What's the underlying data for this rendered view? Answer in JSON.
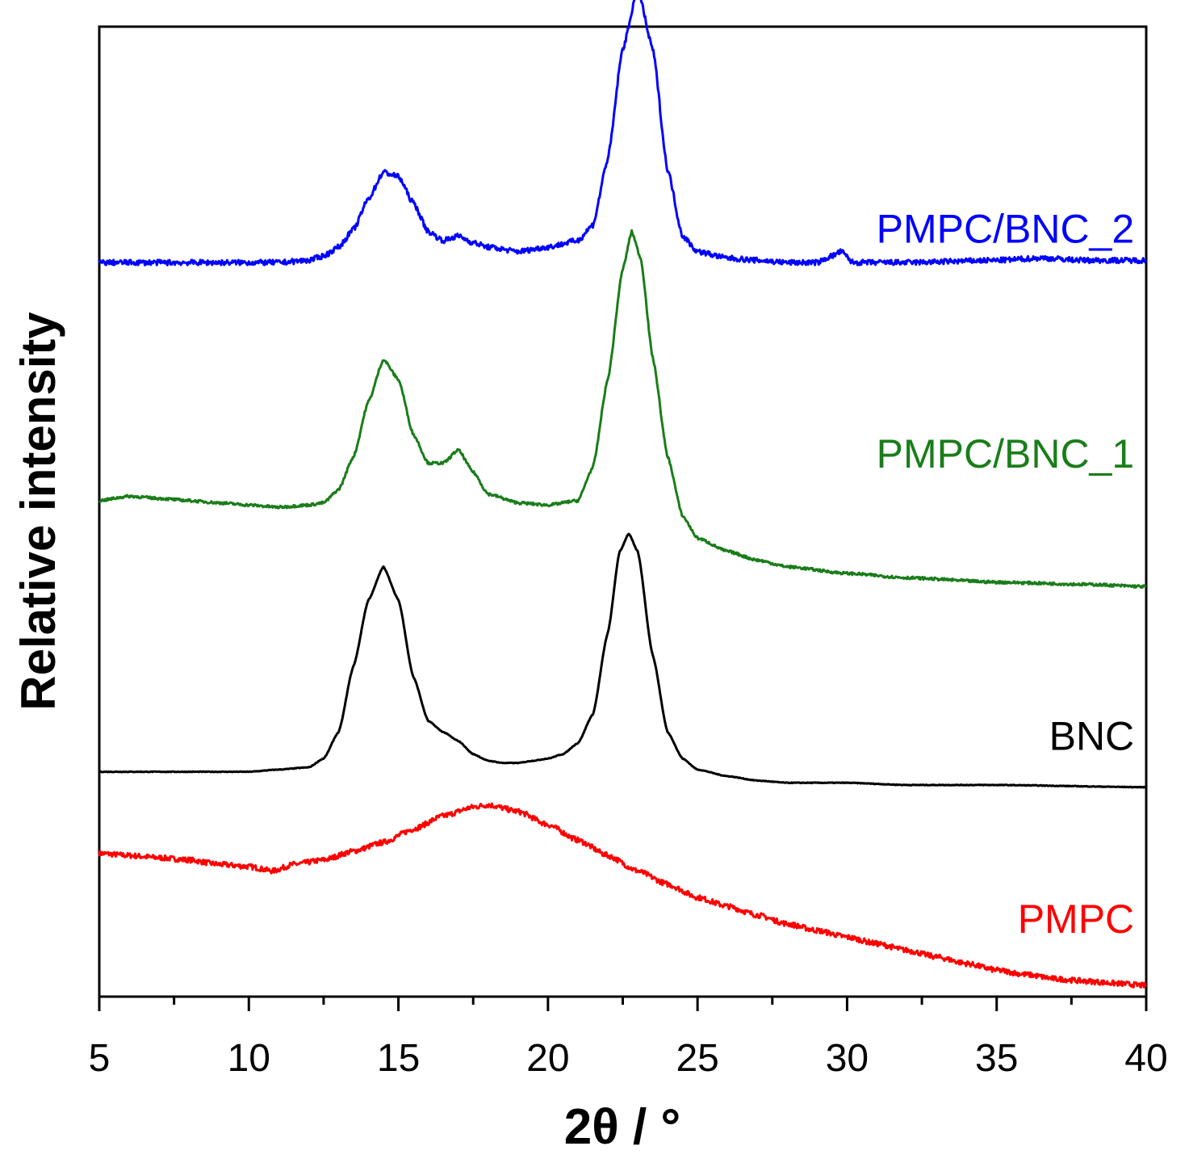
{
  "chart_data": {
    "type": "line",
    "title": "",
    "xlabel": "2θ / °",
    "ylabel": "Relative intensity",
    "xlim": [
      5,
      40
    ],
    "ylim": [
      0,
      4.4
    ],
    "x_ticks": [
      5,
      10,
      15,
      20,
      25,
      30,
      35,
      40
    ],
    "x_tick_labels": [
      "5",
      "10",
      "15",
      "20",
      "25",
      "30",
      "35",
      "40"
    ],
    "y_ticks_shown": false,
    "grid": false,
    "legend": "inline labels at right of each curve",
    "series": [
      {
        "name": "PMPC",
        "color": "#ff0000",
        "label_anchor": [
          39.6,
          0.29
        ],
        "points": [
          [
            5,
            0.65
          ],
          [
            6,
            0.64
          ],
          [
            7,
            0.63
          ],
          [
            8,
            0.62
          ],
          [
            9,
            0.6
          ],
          [
            10,
            0.59
          ],
          [
            10.8,
            0.57
          ],
          [
            11.5,
            0.6
          ],
          [
            12.5,
            0.62
          ],
          [
            13.5,
            0.66
          ],
          [
            14.5,
            0.7
          ],
          [
            15.5,
            0.76
          ],
          [
            16.5,
            0.82
          ],
          [
            17.5,
            0.86
          ],
          [
            18,
            0.87
          ],
          [
            19,
            0.84
          ],
          [
            20,
            0.78
          ],
          [
            21,
            0.71
          ],
          [
            22,
            0.64
          ],
          [
            23,
            0.57
          ],
          [
            24,
            0.51
          ],
          [
            25,
            0.45
          ],
          [
            26,
            0.41
          ],
          [
            27,
            0.37
          ],
          [
            28,
            0.33
          ],
          [
            29,
            0.3
          ],
          [
            30,
            0.27
          ],
          [
            31,
            0.24
          ],
          [
            32,
            0.21
          ],
          [
            33,
            0.18
          ],
          [
            34,
            0.15
          ],
          [
            35,
            0.12
          ],
          [
            36,
            0.1
          ],
          [
            37,
            0.08
          ],
          [
            38,
            0.07
          ],
          [
            39,
            0.06
          ],
          [
            40,
            0.05
          ]
        ]
      },
      {
        "name": "BNC",
        "color": "#000000",
        "label_anchor": [
          39.6,
          1.12
        ],
        "points": [
          [
            5,
            1.02
          ],
          [
            8,
            1.02
          ],
          [
            10,
            1.02
          ],
          [
            11,
            1.03
          ],
          [
            12,
            1.04
          ],
          [
            12.5,
            1.08
          ],
          [
            13,
            1.2
          ],
          [
            13.5,
            1.5
          ],
          [
            14,
            1.8
          ],
          [
            14.5,
            1.95
          ],
          [
            15,
            1.8
          ],
          [
            15.5,
            1.45
          ],
          [
            16,
            1.25
          ],
          [
            16.5,
            1.2
          ],
          [
            17,
            1.16
          ],
          [
            17.5,
            1.1
          ],
          [
            18,
            1.07
          ],
          [
            18.5,
            1.06
          ],
          [
            19,
            1.06
          ],
          [
            19.5,
            1.07
          ],
          [
            20,
            1.08
          ],
          [
            20.5,
            1.1
          ],
          [
            21,
            1.15
          ],
          [
            21.5,
            1.28
          ],
          [
            22,
            1.65
          ],
          [
            22.4,
            2.02
          ],
          [
            22.7,
            2.1
          ],
          [
            23,
            2.02
          ],
          [
            23.5,
            1.55
          ],
          [
            24,
            1.2
          ],
          [
            24.5,
            1.08
          ],
          [
            25,
            1.03
          ],
          [
            26,
            1.0
          ],
          [
            27,
            0.98
          ],
          [
            28,
            0.97
          ],
          [
            30,
            0.97
          ],
          [
            32,
            0.96
          ],
          [
            35,
            0.96
          ],
          [
            40,
            0.95
          ]
        ]
      },
      {
        "name": "PMPC/BNC_1",
        "color": "#1a7d1a",
        "label_anchor": [
          39.6,
          2.4
        ],
        "points": [
          [
            5,
            2.25
          ],
          [
            6,
            2.27
          ],
          [
            7,
            2.26
          ],
          [
            8,
            2.25
          ],
          [
            9,
            2.24
          ],
          [
            10,
            2.23
          ],
          [
            11,
            2.22
          ],
          [
            12,
            2.23
          ],
          [
            12.5,
            2.24
          ],
          [
            13,
            2.3
          ],
          [
            13.5,
            2.45
          ],
          [
            14,
            2.7
          ],
          [
            14.5,
            2.89
          ],
          [
            15,
            2.8
          ],
          [
            15.5,
            2.55
          ],
          [
            16,
            2.42
          ],
          [
            16.5,
            2.42
          ],
          [
            17,
            2.48
          ],
          [
            17.5,
            2.38
          ],
          [
            18,
            2.28
          ],
          [
            19,
            2.24
          ],
          [
            20,
            2.23
          ],
          [
            21,
            2.25
          ],
          [
            21.5,
            2.4
          ],
          [
            22,
            2.8
          ],
          [
            22.5,
            3.3
          ],
          [
            22.8,
            3.47
          ],
          [
            23.1,
            3.35
          ],
          [
            23.5,
            2.9
          ],
          [
            24,
            2.45
          ],
          [
            24.5,
            2.18
          ],
          [
            25,
            2.08
          ],
          [
            26,
            2.02
          ],
          [
            27,
            1.98
          ],
          [
            28,
            1.95
          ],
          [
            30,
            1.92
          ],
          [
            32,
            1.9
          ],
          [
            35,
            1.88
          ],
          [
            38,
            1.87
          ],
          [
            40,
            1.86
          ]
        ]
      },
      {
        "name": "PMPC/BNC_2",
        "color": "#0000ff",
        "label_anchor": [
          39.6,
          3.42
        ],
        "points": [
          [
            5,
            3.33
          ],
          [
            8,
            3.33
          ],
          [
            10,
            3.33
          ],
          [
            11,
            3.33
          ],
          [
            12,
            3.34
          ],
          [
            12.5,
            3.36
          ],
          [
            13,
            3.4
          ],
          [
            13.5,
            3.48
          ],
          [
            14,
            3.62
          ],
          [
            14.5,
            3.74
          ],
          [
            15,
            3.72
          ],
          [
            15.5,
            3.6
          ],
          [
            16,
            3.47
          ],
          [
            16.5,
            3.43
          ],
          [
            17,
            3.45
          ],
          [
            17.5,
            3.42
          ],
          [
            18,
            3.4
          ],
          [
            19,
            3.38
          ],
          [
            20,
            3.4
          ],
          [
            21,
            3.43
          ],
          [
            21.5,
            3.5
          ],
          [
            22,
            3.8
          ],
          [
            22.5,
            4.3
          ],
          [
            23,
            4.57
          ],
          [
            23.5,
            4.3
          ],
          [
            24,
            3.75
          ],
          [
            24.5,
            3.45
          ],
          [
            25,
            3.38
          ],
          [
            26,
            3.35
          ],
          [
            27,
            3.34
          ],
          [
            28,
            3.33
          ],
          [
            29,
            3.33
          ],
          [
            29.5,
            3.36
          ],
          [
            29.8,
            3.38
          ],
          [
            30.2,
            3.33
          ],
          [
            32,
            3.33
          ],
          [
            35,
            3.34
          ],
          [
            36.5,
            3.35
          ],
          [
            38,
            3.34
          ],
          [
            40,
            3.34
          ]
        ]
      }
    ]
  }
}
